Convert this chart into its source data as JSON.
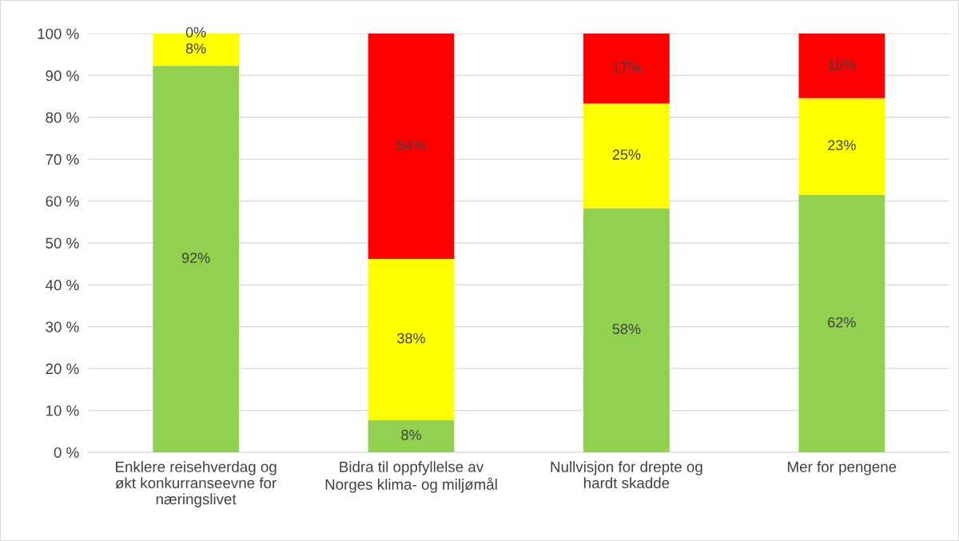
{
  "chart_data": {
    "type": "bar",
    "stacked": true,
    "categories": [
      "Enklere reisehverdag og\nøkt konkurranseevne for\nnæringslivet",
      "Bidra til oppfyllelse av\nNorges klima- og miljømål",
      "Nullvisjon for drepte og\nhardt skadde",
      "Mer for pengene"
    ],
    "series": [
      {
        "color": "#92d050",
        "values": [
          92.3,
          7.7,
          58.3,
          61.5
        ],
        "value_labels": [
          "92%",
          "8%",
          "58%",
          "62%"
        ]
      },
      {
        "color": "#ffff00",
        "values": [
          7.7,
          38.5,
          25.0,
          23.1
        ],
        "value_labels": [
          "8%",
          "38%",
          "25%",
          "23%"
        ]
      },
      {
        "color": "#ff0000",
        "values": [
          0,
          53.8,
          16.7,
          15.4
        ],
        "value_labels": [
          "0%",
          "54%",
          "17%",
          "15%"
        ]
      }
    ],
    "ylim": [
      0,
      100
    ],
    "yticks": [
      {
        "value": 0,
        "label": "0 %"
      },
      {
        "value": 10,
        "label": "10 %"
      },
      {
        "value": 20,
        "label": "20 %"
      },
      {
        "value": 30,
        "label": "30 %"
      },
      {
        "value": 40,
        "label": "40 %"
      },
      {
        "value": 50,
        "label": "50 %"
      },
      {
        "value": 60,
        "label": "60 %"
      },
      {
        "value": 70,
        "label": "70 %"
      },
      {
        "value": 80,
        "label": "80 %"
      },
      {
        "value": 90,
        "label": "90 %"
      },
      {
        "value": 100,
        "label": "100 %"
      }
    ],
    "grid": "y",
    "legend": false
  }
}
